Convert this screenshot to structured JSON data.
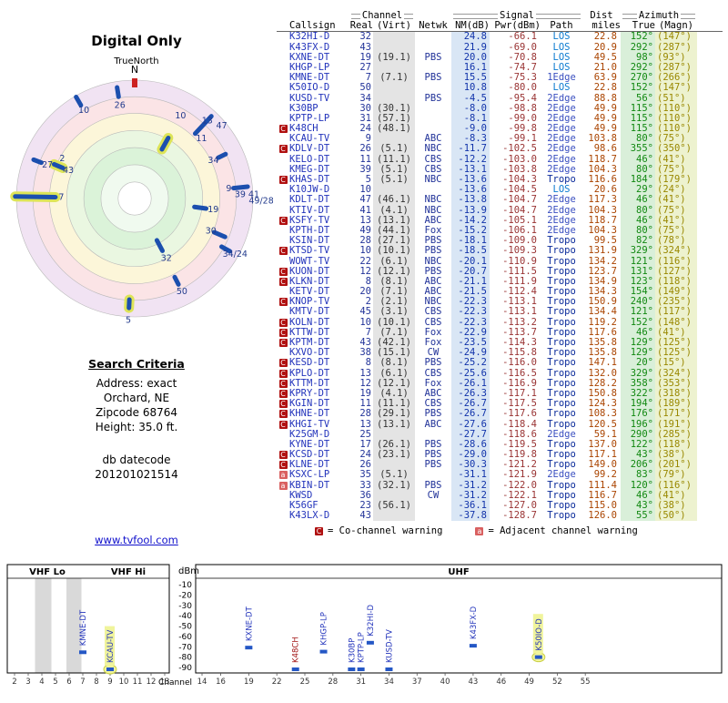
{
  "radar": {
    "title": "Digital Only",
    "true_north_label": "TrueNorth",
    "north_label": "N",
    "north_tick_color": "#cc2222",
    "bar_color": "#1b4fae",
    "halo_color": "#dde457",
    "label_color": "#223a8c",
    "rings": [
      {
        "r": 1.0,
        "c": "#f1e3f3"
      },
      {
        "r": 0.86,
        "c": "#fbe4e6"
      },
      {
        "r": 0.72,
        "c": "#fcf6d9"
      },
      {
        "r": 0.575,
        "c": "#eaf7e1"
      },
      {
        "r": 0.43,
        "c": "#dbf3d9"
      },
      {
        "r": 0.285,
        "c": "#f0faef"
      },
      {
        "r": 0.14,
        "c": "#ffffff"
      }
    ],
    "markers": [
      {
        "label": "26",
        "az": 351,
        "r": 0.91,
        "len": 0.08,
        "hl": false,
        "lr": 0.8
      },
      {
        "label": "10",
        "az": 330,
        "r": 0.95,
        "len": 0.08,
        "hl": false,
        "lr": 0.86
      },
      {
        "label": "10",
        "az": 29,
        "r": 0.53,
        "len": 0.11,
        "hl": true,
        "lr": 0.8
      },
      {
        "label": "11",
        "az": 48,
        "r": 0,
        "len": 0,
        "hl": false,
        "lr": 0.76
      },
      {
        "label": "13",
        "az": 43,
        "r": 0.85,
        "len": 0.2,
        "hl": false,
        "lr": 0.9
      },
      {
        "label": "47",
        "az": 50,
        "r": 0,
        "len": 0,
        "hl": false,
        "lr": 0.96
      },
      {
        "label": "34",
        "az": 64,
        "r": 0.82,
        "len": 0.07,
        "hl": false,
        "lr": 0.74
      },
      {
        "label": "9",
        "az": 84,
        "r": 0.9,
        "len": 0.12,
        "hl": false,
        "lr": 0.8
      },
      {
        "label": "39 41",
        "az": 88,
        "r": 0,
        "len": 0,
        "hl": false,
        "lr": 0.95
      },
      {
        "label": "49/28",
        "az": 91,
        "r": 0,
        "len": 0,
        "hl": false,
        "lr": 1.07
      },
      {
        "label": "19",
        "az": 98,
        "r": 0.56,
        "len": 0.1,
        "hl": false,
        "lr": 0.67
      },
      {
        "label": "30",
        "az": 113,
        "r": 0.78,
        "len": 0.1,
        "hl": false,
        "lr": 0.7
      },
      {
        "label": "34/24",
        "az": 119,
        "r": 0.88,
        "len": 0.08,
        "hl": false,
        "lr": 0.97
      },
      {
        "label": "32",
        "az": 152,
        "r": 0.45,
        "len": 0.1,
        "hl": false,
        "lr": 0.57
      },
      {
        "label": "50",
        "az": 153,
        "r": 0.78,
        "len": 0.07,
        "hl": false,
        "lr": 0.88
      },
      {
        "label": "5",
        "az": 183,
        "r": 0.89,
        "len": 0.07,
        "hl": true,
        "lr": 1.03
      },
      {
        "label": "7",
        "az": 271,
        "r": 0.84,
        "len": 0.34,
        "hl": true,
        "lr": 0.62
      },
      {
        "label": "2",
        "az": 299,
        "r": 0,
        "len": 0,
        "hl": false,
        "lr": 0.7
      },
      {
        "label": "43",
        "az": 293,
        "r": 0.7,
        "len": 0.08,
        "hl": true,
        "lr": 0.61
      },
      {
        "label": "27",
        "az": 291,
        "r": 0.88,
        "len": 0.07,
        "hl": false,
        "lr": 0.79
      }
    ]
  },
  "search": {
    "heading": "Search Criteria",
    "lines": [
      "Address: exact",
      "Orchard, NE",
      "Zipcode 68764",
      "Height: 35.0 ft."
    ],
    "datecode_label": "db datecode",
    "datecode_value": "201201021514"
  },
  "link_text": "www.tvfool.com",
  "colors": {
    "path": {
      "LOS": "#0a7ad0",
      "1Edge": "#3a4fc0",
      "2Edge": "#3a4fc0",
      "Tropo": "#0a2a9a"
    },
    "warn_co": "#b01010",
    "warn_adj": "#d96060",
    "marker": "#2457c5",
    "label_blue": "#2233bb",
    "label_warn": "#a11212",
    "highlight": "#f0f49c"
  },
  "table": {
    "groups": {
      "channel": "Channel",
      "signal": "Signal",
      "dist": "Dist",
      "azimuth": "Azimuth"
    },
    "columns": [
      "Callsign",
      "Real",
      "(Virt)",
      "Netwk",
      "NM(dB)",
      "Pwr(dBm)",
      "Path",
      "miles",
      "True",
      "(Magn)"
    ],
    "legend": [
      {
        "sym": "C",
        "text": "= Co-channel warning"
      },
      {
        "sym": "a",
        "text": "= Adjacent channel warning"
      }
    ],
    "rows": [
      {
        "w": "",
        "cs": "K32HI-D",
        "real": "32",
        "virt": "",
        "net": "",
        "nm": "24.8",
        "pwr": "-66.1",
        "path": "LOS",
        "mi": "22.8",
        "tru": "152°",
        "mag": "(147°)"
      },
      {
        "w": "",
        "cs": "K43FX-D",
        "real": "43",
        "virt": "",
        "net": "",
        "nm": "21.9",
        "pwr": "-69.0",
        "path": "LOS",
        "mi": "20.9",
        "tru": "292°",
        "mag": "(287°)"
      },
      {
        "w": "",
        "cs": "KXNE-DT",
        "real": "19",
        "virt": "(19.1)",
        "net": "PBS",
        "nm": "20.0",
        "pwr": "-70.8",
        "path": "LOS",
        "mi": "49.5",
        "tru": "98°",
        "mag": "(93°)"
      },
      {
        "w": "",
        "cs": "KHGP-LP",
        "real": "27",
        "virt": "",
        "net": "",
        "nm": "16.1",
        "pwr": "-74.7",
        "path": "LOS",
        "mi": "21.0",
        "tru": "292°",
        "mag": "(287°)"
      },
      {
        "w": "",
        "cs": "KMNE-DT",
        "real": "7",
        "virt": "(7.1)",
        "net": "PBS",
        "nm": "15.5",
        "pwr": "-75.3",
        "path": "1Edge",
        "mi": "63.9",
        "tru": "270°",
        "mag": "(266°)"
      },
      {
        "w": "",
        "cs": "K50IO-D",
        "real": "50",
        "virt": "",
        "net": "",
        "nm": "10.8",
        "pwr": "-80.0",
        "path": "LOS",
        "mi": "22.8",
        "tru": "152°",
        "mag": "(147°)"
      },
      {
        "w": "",
        "cs": "KUSD-TV",
        "real": "34",
        "virt": "",
        "net": "PBS",
        "nm": "-4.5",
        "pwr": "-95.4",
        "path": "2Edge",
        "mi": "88.8",
        "tru": "56°",
        "mag": "(51°)"
      },
      {
        "w": "",
        "cs": "K30BP",
        "real": "30",
        "virt": "(30.1)",
        "net": "",
        "nm": "-8.0",
        "pwr": "-98.8",
        "path": "2Edge",
        "mi": "49.9",
        "tru": "115°",
        "mag": "(110°)"
      },
      {
        "w": "",
        "cs": "KPTP-LP",
        "real": "31",
        "virt": "(57.1)",
        "net": "",
        "nm": "-8.1",
        "pwr": "-99.0",
        "path": "2Edge",
        "mi": "49.9",
        "tru": "115°",
        "mag": "(110°)"
      },
      {
        "w": "C",
        "cs": "K48CH",
        "real": "24",
        "virt": "(48.1)",
        "net": "",
        "nm": "-9.0",
        "pwr": "-99.8",
        "path": "2Edge",
        "mi": "49.9",
        "tru": "115°",
        "mag": "(110°)"
      },
      {
        "w": "",
        "cs": "KCAU-TV",
        "real": "9",
        "virt": "",
        "net": "ABC",
        "nm": "-8.3",
        "pwr": "-99.1",
        "path": "2Edge",
        "mi": "103.8",
        "tru": "80°",
        "mag": "(75°)"
      },
      {
        "w": "C",
        "cs": "KDLV-DT",
        "real": "26",
        "virt": "(5.1)",
        "net": "NBC",
        "nm": "-11.7",
        "pwr": "-102.5",
        "path": "2Edge",
        "mi": "98.6",
        "tru": "355°",
        "mag": "(350°)"
      },
      {
        "w": "",
        "cs": "KELO-DT",
        "real": "11",
        "virt": "(11.1)",
        "net": "CBS",
        "nm": "-12.2",
        "pwr": "-103.0",
        "path": "2Edge",
        "mi": "118.7",
        "tru": "46°",
        "mag": "(41°)"
      },
      {
        "w": "",
        "cs": "KMEG-DT",
        "real": "39",
        "virt": "(5.1)",
        "net": "CBS",
        "nm": "-13.1",
        "pwr": "-103.8",
        "path": "2Edge",
        "mi": "104.3",
        "tru": "80°",
        "mag": "(75°)"
      },
      {
        "w": "C",
        "cs": "KHAS-DT",
        "real": "5",
        "virt": "(5.1)",
        "net": "NBC",
        "nm": "-13.6",
        "pwr": "-104.3",
        "path": "Tropo",
        "mi": "116.6",
        "tru": "184°",
        "mag": "(179°)"
      },
      {
        "w": "",
        "cs": "K10JW-D",
        "real": "10",
        "virt": "",
        "net": "",
        "nm": "-13.6",
        "pwr": "-104.5",
        "path": "LOS",
        "mi": "20.6",
        "tru": "29°",
        "mag": "(24°)"
      },
      {
        "w": "",
        "cs": "KDLT-DT",
        "real": "47",
        "virt": "(46.1)",
        "net": "NBC",
        "nm": "-13.8",
        "pwr": "-104.7",
        "path": "2Edge",
        "mi": "117.3",
        "tru": "46°",
        "mag": "(41°)"
      },
      {
        "w": "",
        "cs": "KTIV-DT",
        "real": "41",
        "virt": "(4.1)",
        "net": "NBC",
        "nm": "-13.9",
        "pwr": "-104.7",
        "path": "2Edge",
        "mi": "104.3",
        "tru": "80°",
        "mag": "(75°)"
      },
      {
        "w": "C",
        "cs": "KSFY-TV",
        "real": "13",
        "virt": "(13.1)",
        "net": "ABC",
        "nm": "-14.2",
        "pwr": "-105.1",
        "path": "2Edge",
        "mi": "118.7",
        "tru": "46°",
        "mag": "(41°)"
      },
      {
        "w": "",
        "cs": "KPTH-DT",
        "real": "49",
        "virt": "(44.1)",
        "net": "Fox",
        "nm": "-15.2",
        "pwr": "-106.1",
        "path": "2Edge",
        "mi": "104.3",
        "tru": "80°",
        "mag": "(75°)"
      },
      {
        "w": "",
        "cs": "KSIN-DT",
        "real": "28",
        "virt": "(27.1)",
        "net": "PBS",
        "nm": "-18.1",
        "pwr": "-109.0",
        "path": "Tropo",
        "mi": "99.5",
        "tru": "82°",
        "mag": "(78°)"
      },
      {
        "w": "C",
        "cs": "KTSD-TV",
        "real": "10",
        "virt": "(10.1)",
        "net": "PBS",
        "nm": "-18.5",
        "pwr": "-109.3",
        "path": "Tropo",
        "mi": "131.9",
        "tru": "329°",
        "mag": "(324°)"
      },
      {
        "w": "",
        "cs": "WOWT-TV",
        "real": "22",
        "virt": "(6.1)",
        "net": "NBC",
        "nm": "-20.1",
        "pwr": "-110.9",
        "path": "Tropo",
        "mi": "134.2",
        "tru": "121°",
        "mag": "(116°)"
      },
      {
        "w": "C",
        "cs": "KUON-DT",
        "real": "12",
        "virt": "(12.1)",
        "net": "PBS",
        "nm": "-20.7",
        "pwr": "-111.5",
        "path": "Tropo",
        "mi": "123.7",
        "tru": "131°",
        "mag": "(127°)"
      },
      {
        "w": "C",
        "cs": "KLKN-DT",
        "real": "8",
        "virt": "(8.1)",
        "net": "ABC",
        "nm": "-21.1",
        "pwr": "-111.9",
        "path": "Tropo",
        "mi": "134.9",
        "tru": "123°",
        "mag": "(118°)"
      },
      {
        "w": "",
        "cs": "KETV-DT",
        "real": "20",
        "virt": "(7.1)",
        "net": "ABC",
        "nm": "-21.5",
        "pwr": "-112.4",
        "path": "Tropo",
        "mi": "134.3",
        "tru": "154°",
        "mag": "(149°)"
      },
      {
        "w": "C",
        "cs": "KNOP-TV",
        "real": "2",
        "virt": "(2.1)",
        "net": "NBC",
        "nm": "-22.3",
        "pwr": "-113.1",
        "path": "Tropo",
        "mi": "150.9",
        "tru": "240°",
        "mag": "(235°)"
      },
      {
        "w": "",
        "cs": "KMTV-DT",
        "real": "45",
        "virt": "(3.1)",
        "net": "CBS",
        "nm": "-22.3",
        "pwr": "-113.1",
        "path": "Tropo",
        "mi": "134.4",
        "tru": "121°",
        "mag": "(117°)"
      },
      {
        "w": "C",
        "cs": "KOLN-DT",
        "real": "10",
        "virt": "(10.1)",
        "net": "CBS",
        "nm": "-22.3",
        "pwr": "-113.2",
        "path": "Tropo",
        "mi": "119.2",
        "tru": "152°",
        "mag": "(148°)"
      },
      {
        "w": "C",
        "cs": "KTTW-DT",
        "real": "7",
        "virt": "(7.1)",
        "net": "Fox",
        "nm": "-22.9",
        "pwr": "-113.7",
        "path": "Tropo",
        "mi": "117.6",
        "tru": "46°",
        "mag": "(41°)"
      },
      {
        "w": "C",
        "cs": "KPTM-DT",
        "real": "43",
        "virt": "(42.1)",
        "net": "Fox",
        "nm": "-23.5",
        "pwr": "-114.3",
        "path": "Tropo",
        "mi": "135.8",
        "tru": "129°",
        "mag": "(125°)"
      },
      {
        "w": "",
        "cs": "KXVO-DT",
        "real": "38",
        "virt": "(15.1)",
        "net": "CW",
        "nm": "-24.9",
        "pwr": "-115.8",
        "path": "Tropo",
        "mi": "135.8",
        "tru": "129°",
        "mag": "(125°)"
      },
      {
        "w": "C",
        "cs": "KESD-DT",
        "real": "8",
        "virt": "(8.1)",
        "net": "PBS",
        "nm": "-25.2",
        "pwr": "-116.0",
        "path": "Tropo",
        "mi": "147.1",
        "tru": "20°",
        "mag": "(15°)"
      },
      {
        "w": "C",
        "cs": "KPLO-DT",
        "real": "13",
        "virt": "(6.1)",
        "net": "CBS",
        "nm": "-25.6",
        "pwr": "-116.5",
        "path": "Tropo",
        "mi": "132.0",
        "tru": "329°",
        "mag": "(324°)"
      },
      {
        "w": "C",
        "cs": "KTTM-DT",
        "real": "12",
        "virt": "(12.1)",
        "net": "Fox",
        "nm": "-26.1",
        "pwr": "-116.9",
        "path": "Tropo",
        "mi": "128.2",
        "tru": "358°",
        "mag": "(353°)"
      },
      {
        "w": "C",
        "cs": "KPRY-DT",
        "real": "19",
        "virt": "(4.1)",
        "net": "ABC",
        "nm": "-26.3",
        "pwr": "-117.1",
        "path": "Tropo",
        "mi": "150.8",
        "tru": "322°",
        "mag": "(318°)"
      },
      {
        "w": "C",
        "cs": "KGIN-DT",
        "real": "11",
        "virt": "(11.1)",
        "net": "CBS",
        "nm": "-26.7",
        "pwr": "-117.5",
        "path": "Tropo",
        "mi": "124.3",
        "tru": "194°",
        "mag": "(189°)"
      },
      {
        "w": "C",
        "cs": "KHNE-DT",
        "real": "28",
        "virt": "(29.1)",
        "net": "PBS",
        "nm": "-26.7",
        "pwr": "-117.6",
        "path": "Tropo",
        "mi": "108.3",
        "tru": "176°",
        "mag": "(171°)"
      },
      {
        "w": "C",
        "cs": "KHGI-TV",
        "real": "13",
        "virt": "(13.1)",
        "net": "ABC",
        "nm": "-27.6",
        "pwr": "-118.4",
        "path": "Tropo",
        "mi": "120.5",
        "tru": "196°",
        "mag": "(191°)"
      },
      {
        "w": "",
        "cs": "K25GM-D",
        "real": "25",
        "virt": "",
        "net": "",
        "nm": "-27.7",
        "pwr": "-118.6",
        "path": "2Edge",
        "mi": "59.1",
        "tru": "290°",
        "mag": "(285°)"
      },
      {
        "w": "",
        "cs": "KYNE-DT",
        "real": "17",
        "virt": "(26.1)",
        "net": "PBS",
        "nm": "-28.6",
        "pwr": "-119.5",
        "path": "Tropo",
        "mi": "137.0",
        "tru": "122°",
        "mag": "(118°)"
      },
      {
        "w": "C",
        "cs": "KCSD-DT",
        "real": "24",
        "virt": "(23.1)",
        "net": "PBS",
        "nm": "-29.0",
        "pwr": "-119.8",
        "path": "Tropo",
        "mi": "117.1",
        "tru": "43°",
        "mag": "(38°)"
      },
      {
        "w": "C",
        "cs": "KLNE-DT",
        "real": "26",
        "virt": "",
        "net": "PBS",
        "nm": "-30.3",
        "pwr": "-121.2",
        "path": "Tropo",
        "mi": "149.0",
        "tru": "206°",
        "mag": "(201°)"
      },
      {
        "w": "a",
        "cs": "KSXC-LP",
        "real": "35",
        "virt": "(5.1)",
        "net": "",
        "nm": "-31.1",
        "pwr": "-121.9",
        "path": "2Edge",
        "mi": "99.2",
        "tru": "83°",
        "mag": "(79°)"
      },
      {
        "w": "a",
        "cs": "KBIN-DT",
        "real": "33",
        "virt": "(32.1)",
        "net": "PBS",
        "nm": "-31.2",
        "pwr": "-122.0",
        "path": "Tropo",
        "mi": "111.4",
        "tru": "120°",
        "mag": "(116°)"
      },
      {
        "w": "",
        "cs": "KWSD",
        "real": "36",
        "virt": "",
        "net": "CW",
        "nm": "-31.2",
        "pwr": "-122.1",
        "path": "Tropo",
        "mi": "116.7",
        "tru": "46°",
        "mag": "(41°)"
      },
      {
        "w": "",
        "cs": "K56GF",
        "real": "23",
        "virt": "(56.1)",
        "net": "",
        "nm": "-36.1",
        "pwr": "-127.0",
        "path": "Tropo",
        "mi": "115.0",
        "tru": "43°",
        "mag": "(38°)"
      },
      {
        "w": "",
        "cs": "K43LX-D",
        "real": "43",
        "virt": "",
        "net": "",
        "nm": "-37.8",
        "pwr": "-128.7",
        "path": "Tropo",
        "mi": "126.0",
        "tru": "55°",
        "mag": "(50°)"
      }
    ]
  },
  "spectrum": {
    "type": "scatter",
    "ylabel": "dBm",
    "xlabel": "Channel",
    "ylim": [
      -90,
      -10
    ],
    "yticks": [
      -10,
      -20,
      -30,
      -40,
      -50,
      -60,
      -70,
      -80,
      -90
    ],
    "vhf": {
      "lo_label": "VHF Lo",
      "hi_label": "VHF Hi",
      "ch_min": 2,
      "ch_max": 13,
      "ticks": [
        2,
        3,
        4,
        5,
        6,
        7,
        8,
        9,
        10,
        11,
        12,
        13
      ],
      "gray_bands": [
        [
          3.5,
          4.7
        ],
        [
          5.8,
          6.9
        ]
      ],
      "markers": [
        {
          "label": "KMNE-DT",
          "ch": 7,
          "pwr": -75.3,
          "hl": false,
          "warn": false
        },
        {
          "label": "KCAU-TV",
          "ch": 9,
          "pwr": -99.1,
          "hl": true,
          "warn": false
        }
      ]
    },
    "uhf": {
      "label": "UHF",
      "ch_min": 14,
      "ch_max": 69,
      "ticks": [
        14,
        16,
        19,
        22,
        25,
        28,
        31,
        34,
        37,
        40,
        43,
        46,
        49,
        52,
        55
      ],
      "markers": [
        {
          "label": "KXNE-DT",
          "ch": 19,
          "pwr": -70.8,
          "hl": false,
          "warn": false
        },
        {
          "label": "K48CH",
          "ch": 24,
          "pwr": -99.8,
          "hl": false,
          "warn": true
        },
        {
          "label": "KHGP-LP",
          "ch": 27,
          "pwr": -74.7,
          "hl": false,
          "warn": false
        },
        {
          "label": "K30BP",
          "ch": 30,
          "pwr": -98.8,
          "hl": false,
          "warn": false
        },
        {
          "label": "KPTP-LP",
          "ch": 31,
          "pwr": -99.0,
          "hl": false,
          "warn": false
        },
        {
          "label": "K32HI-D",
          "ch": 32,
          "pwr": -66.1,
          "hl": false,
          "warn": false
        },
        {
          "label": "KUSD-TV",
          "ch": 34,
          "pwr": -95.4,
          "hl": false,
          "warn": false
        },
        {
          "label": "K43FX-D",
          "ch": 43,
          "pwr": -69.0,
          "hl": false,
          "warn": false
        },
        {
          "label": "K50IO-D",
          "ch": 50,
          "pwr": -80.0,
          "hl": true,
          "warn": false
        }
      ]
    }
  }
}
